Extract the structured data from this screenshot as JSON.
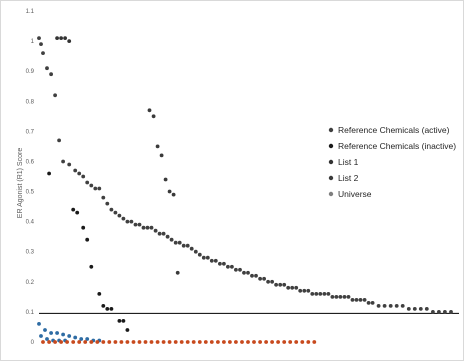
{
  "chart_data": {
    "type": "scatter",
    "title": "",
    "xlabel": "",
    "ylabel": "ER Agonist (R1) Score",
    "ylim": [
      0,
      1.1
    ],
    "yticks": [
      "0",
      "0.1",
      "0.2",
      "0.3",
      "0.4",
      "0.5",
      "0.6",
      "0.7",
      "0.8",
      "0.9",
      "1",
      "1.1"
    ],
    "xlim": [
      0,
      210
    ],
    "grid": false,
    "legend_position": "right",
    "threshold": {
      "y": 0.095,
      "color": "#000000"
    },
    "series": [
      {
        "name": "Reference Chemicals (active)",
        "color": "#404040",
        "points": [
          [
            1,
            1.01
          ],
          [
            2,
            0.99
          ],
          [
            3,
            0.96
          ],
          [
            5,
            0.91
          ],
          [
            7,
            0.89
          ],
          [
            9,
            0.82
          ],
          [
            11,
            0.67
          ],
          [
            13,
            0.6
          ],
          [
            16,
            0.59
          ],
          [
            19,
            0.57
          ],
          [
            21,
            0.56
          ],
          [
            23,
            0.55
          ],
          [
            25,
            0.53
          ],
          [
            27,
            0.52
          ],
          [
            29,
            0.51
          ],
          [
            31,
            0.51
          ],
          [
            33,
            0.48
          ],
          [
            35,
            0.46
          ],
          [
            37,
            0.44
          ],
          [
            39,
            0.43
          ],
          [
            41,
            0.42
          ],
          [
            43,
            0.41
          ],
          [
            45,
            0.4
          ],
          [
            47,
            0.4
          ],
          [
            49,
            0.39
          ],
          [
            51,
            0.39
          ],
          [
            53,
            0.38
          ],
          [
            55,
            0.38
          ],
          [
            57,
            0.38
          ],
          [
            59,
            0.37
          ],
          [
            61,
            0.36
          ],
          [
            63,
            0.36
          ],
          [
            65,
            0.35
          ],
          [
            67,
            0.34
          ],
          [
            69,
            0.33
          ],
          [
            71,
            0.33
          ],
          [
            73,
            0.32
          ],
          [
            75,
            0.32
          ],
          [
            77,
            0.31
          ],
          [
            79,
            0.3
          ],
          [
            81,
            0.29
          ],
          [
            83,
            0.28
          ],
          [
            85,
            0.28
          ],
          [
            87,
            0.27
          ],
          [
            89,
            0.27
          ],
          [
            91,
            0.26
          ],
          [
            93,
            0.26
          ],
          [
            95,
            0.25
          ],
          [
            97,
            0.25
          ],
          [
            99,
            0.24
          ],
          [
            101,
            0.24
          ],
          [
            103,
            0.23
          ],
          [
            105,
            0.23
          ],
          [
            107,
            0.22
          ],
          [
            109,
            0.22
          ],
          [
            111,
            0.21
          ],
          [
            113,
            0.21
          ],
          [
            115,
            0.2
          ],
          [
            117,
            0.2
          ],
          [
            119,
            0.19
          ],
          [
            121,
            0.19
          ],
          [
            123,
            0.19
          ],
          [
            125,
            0.18
          ],
          [
            127,
            0.18
          ],
          [
            129,
            0.18
          ],
          [
            131,
            0.17
          ],
          [
            133,
            0.17
          ],
          [
            135,
            0.17
          ],
          [
            137,
            0.16
          ],
          [
            139,
            0.16
          ],
          [
            141,
            0.16
          ],
          [
            143,
            0.16
          ],
          [
            145,
            0.16
          ],
          [
            147,
            0.15
          ],
          [
            149,
            0.15
          ],
          [
            151,
            0.15
          ],
          [
            153,
            0.15
          ],
          [
            155,
            0.15
          ],
          [
            157,
            0.14
          ],
          [
            159,
            0.14
          ],
          [
            161,
            0.14
          ],
          [
            163,
            0.14
          ],
          [
            165,
            0.13
          ],
          [
            167,
            0.13
          ],
          [
            170,
            0.12
          ],
          [
            173,
            0.12
          ],
          [
            176,
            0.12
          ],
          [
            179,
            0.12
          ],
          [
            182,
            0.12
          ],
          [
            185,
            0.11
          ],
          [
            188,
            0.11
          ],
          [
            191,
            0.11
          ],
          [
            194,
            0.11
          ],
          [
            197,
            0.1
          ],
          [
            200,
            0.1
          ],
          [
            203,
            0.1
          ],
          [
            206,
            0.1
          ]
        ]
      },
      {
        "name": "Reference Chemicals (inactive)",
        "color": "#1a1a1a",
        "points": [
          [
            6,
            0.56
          ],
          [
            18,
            0.44
          ],
          [
            20,
            0.43
          ],
          [
            23,
            0.38
          ],
          [
            25,
            0.34
          ],
          [
            27,
            0.25
          ],
          [
            31,
            0.16
          ],
          [
            33,
            0.12
          ],
          [
            35,
            0.11
          ],
          [
            37,
            0.11
          ],
          [
            41,
            0.07
          ],
          [
            43,
            0.07
          ],
          [
            45,
            0.04
          ]
        ]
      },
      {
        "name": "List 1",
        "color": "#333333",
        "points": [
          [
            10,
            1.01
          ],
          [
            12,
            1.01
          ],
          [
            14,
            1.01
          ],
          [
            16,
            1.0
          ]
        ]
      },
      {
        "name": "List 2",
        "color": "#3a3a3a",
        "points": [
          [
            56,
            0.77
          ],
          [
            58,
            0.75
          ],
          [
            60,
            0.65
          ],
          [
            62,
            0.62
          ],
          [
            64,
            0.54
          ],
          [
            66,
            0.5
          ],
          [
            68,
            0.49
          ],
          [
            70,
            0.23
          ]
        ]
      },
      {
        "name": "Universe",
        "color": "#7f7f7f",
        "points": []
      },
      {
        "name": "",
        "color": "#2e6ca4",
        "points": [
          [
            1,
            0.06
          ],
          [
            4,
            0.04
          ],
          [
            7,
            0.03
          ],
          [
            10,
            0.03
          ],
          [
            13,
            0.025
          ],
          [
            16,
            0.02
          ],
          [
            19,
            0.015
          ],
          [
            22,
            0.01
          ],
          [
            25,
            0.01
          ],
          [
            28,
            0.005
          ],
          [
            31,
            0.005
          ],
          [
            2,
            0.02
          ],
          [
            5,
            0.01
          ],
          [
            8,
            0.005
          ],
          [
            11,
            0.005
          ],
          [
            14,
            0.005
          ]
        ]
      },
      {
        "name": "",
        "color": "#c84a1e",
        "points": [
          [
            3,
            0.0
          ],
          [
            6,
            0.0
          ],
          [
            9,
            0.0
          ],
          [
            12,
            0.0
          ],
          [
            15,
            0.0
          ],
          [
            18,
            0.0
          ],
          [
            21,
            0.0
          ],
          [
            24,
            0.0
          ],
          [
            27,
            0.0
          ],
          [
            30,
            0.0
          ],
          [
            33,
            0.0
          ],
          [
            36,
            0.0
          ],
          [
            39,
            0.0
          ],
          [
            42,
            0.0
          ],
          [
            45,
            0.0
          ],
          [
            48,
            0.0
          ],
          [
            51,
            0.0
          ],
          [
            54,
            0.0
          ],
          [
            57,
            0.0
          ],
          [
            60,
            0.0
          ],
          [
            63,
            0.0
          ],
          [
            66,
            0.0
          ],
          [
            69,
            0.0
          ],
          [
            72,
            0.0
          ],
          [
            75,
            0.0
          ],
          [
            78,
            0.0
          ],
          [
            81,
            0.0
          ],
          [
            84,
            0.0
          ],
          [
            87,
            0.0
          ],
          [
            90,
            0.0
          ],
          [
            93,
            0.0
          ],
          [
            96,
            0.0
          ],
          [
            99,
            0.0
          ],
          [
            102,
            0.0
          ],
          [
            105,
            0.0
          ],
          [
            108,
            0.0
          ],
          [
            111,
            0.0
          ],
          [
            114,
            0.0
          ],
          [
            117,
            0.0
          ],
          [
            120,
            0.0
          ],
          [
            123,
            0.0
          ],
          [
            126,
            0.0
          ],
          [
            129,
            0.0
          ],
          [
            132,
            0.0
          ],
          [
            135,
            0.0
          ],
          [
            138,
            0.0
          ]
        ]
      }
    ]
  }
}
